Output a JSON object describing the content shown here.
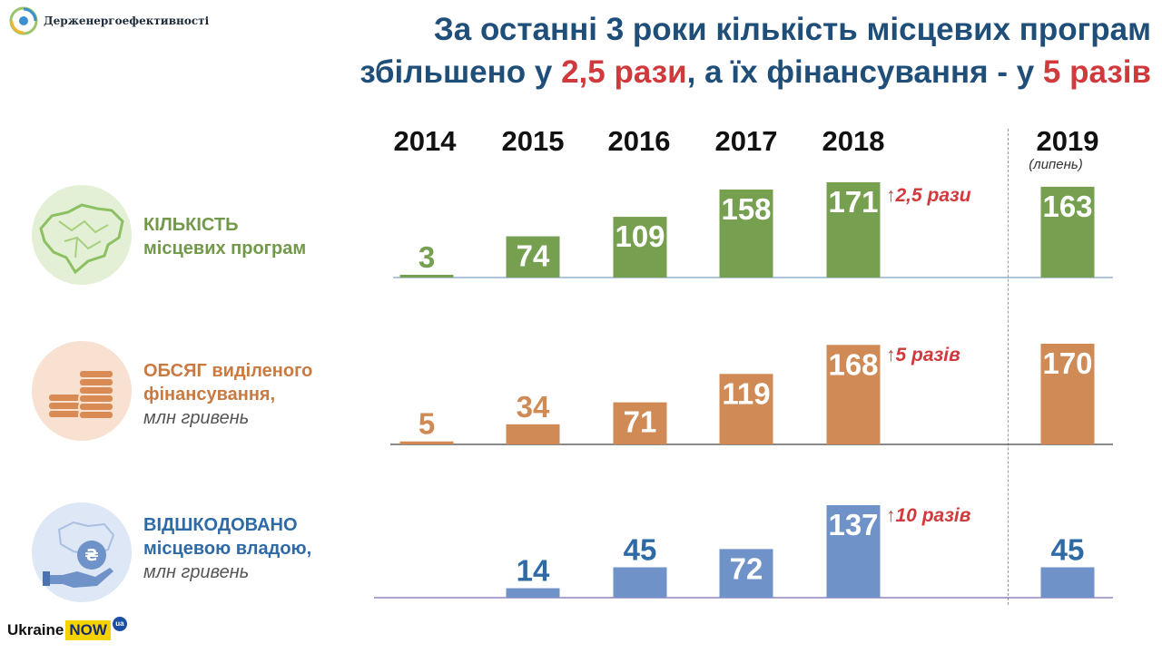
{
  "header": {
    "logo_text": "Держенергоефективності",
    "title_line1": "За останні 3 роки кількість місцевих програм",
    "title_line2_a": "збільшено у ",
    "title_line2_b": "2,5 рази",
    "title_line2_c": ", а їх фінансування - у ",
    "title_line2_d": "5 разів"
  },
  "years": [
    "2014",
    "2015",
    "2016",
    "2017",
    "2018",
    "2019"
  ],
  "year_note": "(липень)",
  "rows": [
    {
      "label_main1": "КІЛЬКІСТЬ",
      "label_main2": "місцевих програм",
      "growth": "2,5 рази",
      "icon": "ukraine-map-icon"
    },
    {
      "label_main1": "ОБСЯГ виділеного",
      "label_main2": "фінансування,",
      "label_sub": "млн гривень",
      "growth": "5 разів",
      "icon": "coins-icon"
    },
    {
      "label_main1": "ВІДШКОДОВАНО",
      "label_main2": "місцевою владою,",
      "label_sub": "млн гривень",
      "growth": "10 разів",
      "icon": "hand-hryvnia-icon"
    }
  ],
  "growth_arrow": "↑",
  "footer": {
    "brand_a": "Ukraine",
    "brand_b": "NOW",
    "brand_c": "ua"
  },
  "chart_data": [
    {
      "type": "bar",
      "title": "Кількість місцевих програм",
      "categories": [
        "2014",
        "2015",
        "2016",
        "2017",
        "2018",
        "2019 (липень)"
      ],
      "values": [
        3,
        74,
        109,
        158,
        171,
        163
      ],
      "color": "#76a04f"
    },
    {
      "type": "bar",
      "title": "Обсяг виділеного фінансування, млн гривень",
      "categories": [
        "2014",
        "2015",
        "2016",
        "2017",
        "2018",
        "2019 (липень)"
      ],
      "values": [
        5,
        34,
        71,
        119,
        168,
        170
      ],
      "color": "#cf8a55"
    },
    {
      "type": "bar",
      "title": "Відшкодовано місцевою владою, млн гривень",
      "categories": [
        "2014",
        "2015",
        "2016",
        "2017",
        "2018",
        "2019 (липень)"
      ],
      "values": [
        null,
        14,
        45,
        72,
        137,
        45
      ],
      "color": "#6f93c9"
    }
  ]
}
